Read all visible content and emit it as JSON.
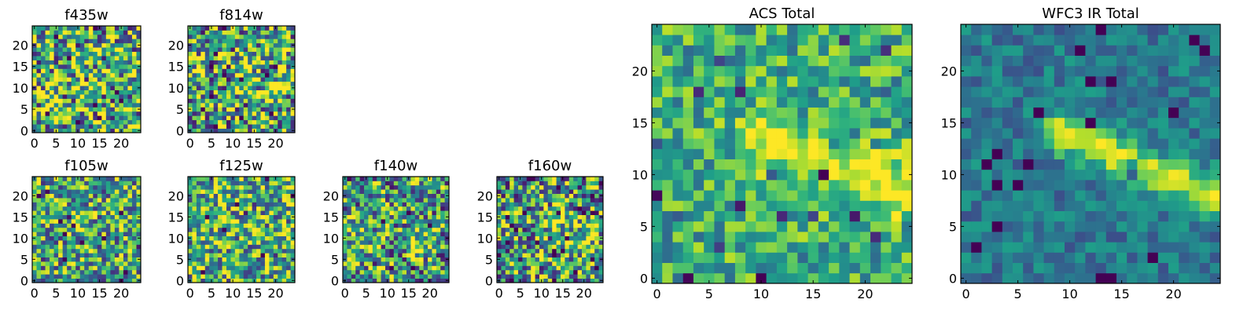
{
  "chart_data": [
    {
      "type": "heatmap",
      "title": "f435w",
      "xlim": [
        0,
        24
      ],
      "ylim": [
        0,
        24
      ],
      "xticks": [
        0,
        5,
        10,
        15,
        20
      ],
      "yticks": [
        0,
        5,
        10,
        15,
        20
      ],
      "xlabel": "",
      "ylabel": "",
      "grid_size": 25,
      "colormap": "viridis",
      "pattern": {
        "seed": 11,
        "noise": 0.55,
        "base": 0.62,
        "spots": [],
        "band": null
      }
    },
    {
      "type": "heatmap",
      "title": "f814w",
      "xlim": [
        0,
        24
      ],
      "ylim": [
        0,
        24
      ],
      "xticks": [
        0,
        5,
        10,
        15,
        20
      ],
      "yticks": [
        0,
        5,
        10,
        15,
        20
      ],
      "xlabel": "",
      "ylabel": "",
      "grid_size": 25,
      "colormap": "viridis",
      "pattern": {
        "seed": 23,
        "noise": 0.55,
        "base": 0.6,
        "spots": [
          [
            19,
            9,
            0.3
          ]
        ],
        "band": null
      }
    },
    {
      "type": "heatmap",
      "title": "f105w",
      "xlim": [
        0,
        24
      ],
      "ylim": [
        0,
        24
      ],
      "xticks": [
        0,
        5,
        10,
        15,
        20
      ],
      "yticks": [
        0,
        5,
        10,
        15,
        20
      ],
      "xlabel": "",
      "ylabel": "",
      "grid_size": 25,
      "colormap": "viridis",
      "pattern": {
        "seed": 37,
        "noise": 0.45,
        "base": 0.58,
        "spots": [
          [
            10,
            14,
            0.2
          ]
        ],
        "band": null
      }
    },
    {
      "type": "heatmap",
      "title": "f125w",
      "xlim": [
        0,
        24
      ],
      "ylim": [
        0,
        24
      ],
      "xticks": [
        0,
        5,
        10,
        15,
        20
      ],
      "yticks": [
        0,
        5,
        10,
        15,
        20
      ],
      "xlabel": "",
      "ylabel": "",
      "grid_size": 25,
      "colormap": "viridis",
      "pattern": {
        "seed": 41,
        "noise": 0.45,
        "base": 0.62,
        "spots": [],
        "band": null
      }
    },
    {
      "type": "heatmap",
      "title": "f140w",
      "xlim": [
        0,
        24
      ],
      "ylim": [
        0,
        24
      ],
      "xticks": [
        0,
        5,
        10,
        15,
        20
      ],
      "yticks": [
        0,
        5,
        10,
        15,
        20
      ],
      "xlabel": "",
      "ylabel": "",
      "grid_size": 25,
      "colormap": "viridis",
      "pattern": {
        "seed": 53,
        "noise": 0.5,
        "base": 0.55,
        "spots": [
          [
            18,
            10,
            0.3
          ],
          [
            4,
            10,
            0.25
          ]
        ],
        "band": null
      }
    },
    {
      "type": "heatmap",
      "title": "f160w",
      "xlim": [
        0,
        24
      ],
      "ylim": [
        0,
        24
      ],
      "xticks": [
        0,
        5,
        10,
        15,
        20
      ],
      "yticks": [
        0,
        5,
        10,
        15,
        20
      ],
      "xlabel": "",
      "ylabel": "",
      "grid_size": 25,
      "colormap": "viridis",
      "pattern": {
        "seed": 67,
        "noise": 0.5,
        "base": 0.55,
        "spots": [
          [
            13,
            14,
            0.3
          ],
          [
            20,
            9,
            0.3
          ]
        ],
        "band": null
      }
    },
    {
      "type": "heatmap",
      "title": "ACS Total",
      "xlim": [
        0,
        24
      ],
      "ylim": [
        0,
        24
      ],
      "xticks": [
        0,
        5,
        10,
        15,
        20
      ],
      "yticks": [
        0,
        5,
        10,
        15,
        20
      ],
      "xlabel": "",
      "ylabel": "",
      "grid_size": 25,
      "colormap": "viridis",
      "pattern": {
        "seed": 79,
        "noise": 0.28,
        "base": 0.62,
        "spots": [
          [
            11,
            13,
            0.3
          ],
          [
            22,
            9,
            0.3
          ]
        ],
        "band": {
          "x0": 10,
          "y0": 14,
          "x1": 24,
          "y1": 8,
          "amp": 0.2
        }
      }
    },
    {
      "type": "heatmap",
      "title": "WFC3 IR Total",
      "xlim": [
        0,
        24
      ],
      "ylim": [
        0,
        24
      ],
      "xticks": [
        0,
        5,
        10,
        15,
        20
      ],
      "yticks": [
        0,
        5,
        10,
        15,
        20
      ],
      "xlabel": "",
      "ylabel": "",
      "grid_size": 25,
      "colormap": "viridis",
      "pattern": {
        "seed": 97,
        "noise": 0.16,
        "base": 0.4,
        "spots": [],
        "band": {
          "x0": 9,
          "y0": 14,
          "x1": 24,
          "y1": 8,
          "amp": 0.55
        }
      }
    }
  ]
}
